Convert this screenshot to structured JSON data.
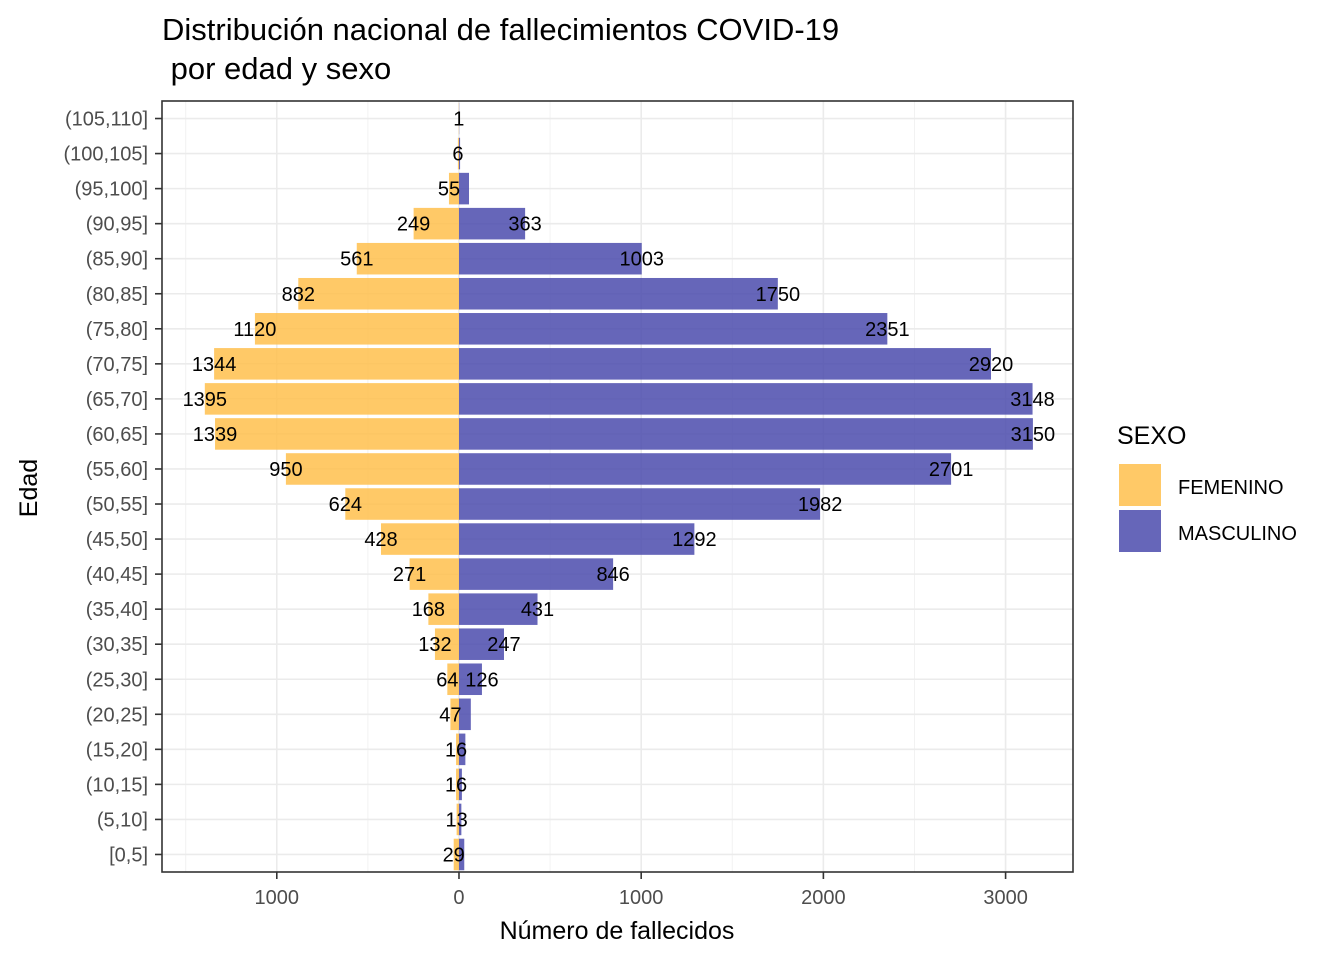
{
  "chart_data": {
    "type": "bar",
    "orientation": "horizontal",
    "title_line1": "Distribución nacional de fallecimientos COVID-19",
    "title_line2": " por edad y sexo",
    "xlabel": "Número de fallecidos",
    "ylabel": "Edad",
    "xlim": [
      -1630,
      3370
    ],
    "x_ticks": [
      {
        "value": -1000,
        "label": "1000"
      },
      {
        "value": 0,
        "label": "0"
      },
      {
        "value": 1000,
        "label": "1000"
      },
      {
        "value": 2000,
        "label": "2000"
      },
      {
        "value": 3000,
        "label": "3000"
      }
    ],
    "x_minor_ticks": [
      -1500,
      -500,
      500,
      1500,
      2500
    ],
    "grid": true,
    "legend": {
      "title": "SEXO",
      "position": "right"
    },
    "categories": [
      "[0,5]",
      "(5,10]",
      "(10,15]",
      "(15,20]",
      "(20,25]",
      "(25,30]",
      "(30,35]",
      "(35,40]",
      "(40,45]",
      "(45,50]",
      "(50,55]",
      "(55,60]",
      "(60,65]",
      "(65,70]",
      "(70,75]",
      "(75,80]",
      "(80,85]",
      "(85,90]",
      "(90,95]",
      "(95,100]",
      "(100,105]",
      "(105,110]"
    ],
    "series": [
      {
        "name": "FEMENINO",
        "color": "#FFBF4C",
        "direction": "negative",
        "values": [
          29,
          13,
          16,
          16,
          47,
          64,
          132,
          168,
          271,
          428,
          624,
          950,
          1339,
          1395,
          1344,
          1120,
          882,
          561,
          249,
          55,
          6,
          1
        ],
        "labels": [
          "29",
          "13",
          "16",
          "16",
          "47",
          "64",
          "132",
          "168",
          "271",
          "428",
          "624",
          "950",
          "1339",
          "1395",
          "1344",
          "1120",
          "882",
          "561",
          "249",
          "55",
          "6",
          "1"
        ]
      },
      {
        "name": "MASCULINO",
        "color": "#4B4BAD",
        "direction": "positive",
        "values": [
          29,
          13,
          16,
          35,
          65,
          126,
          247,
          431,
          846,
          1292,
          1982,
          2701,
          3150,
          3148,
          2920,
          2351,
          1750,
          1003,
          363,
          55,
          6,
          1
        ],
        "labels": [
          "",
          "",
          "",
          "",
          "",
          "126",
          "247",
          "431",
          "846",
          "1292",
          "1982",
          "2701",
          "3150",
          "3148",
          "2920",
          "2351",
          "1750",
          "1003",
          "363",
          "",
          "",
          ""
        ]
      }
    ]
  }
}
